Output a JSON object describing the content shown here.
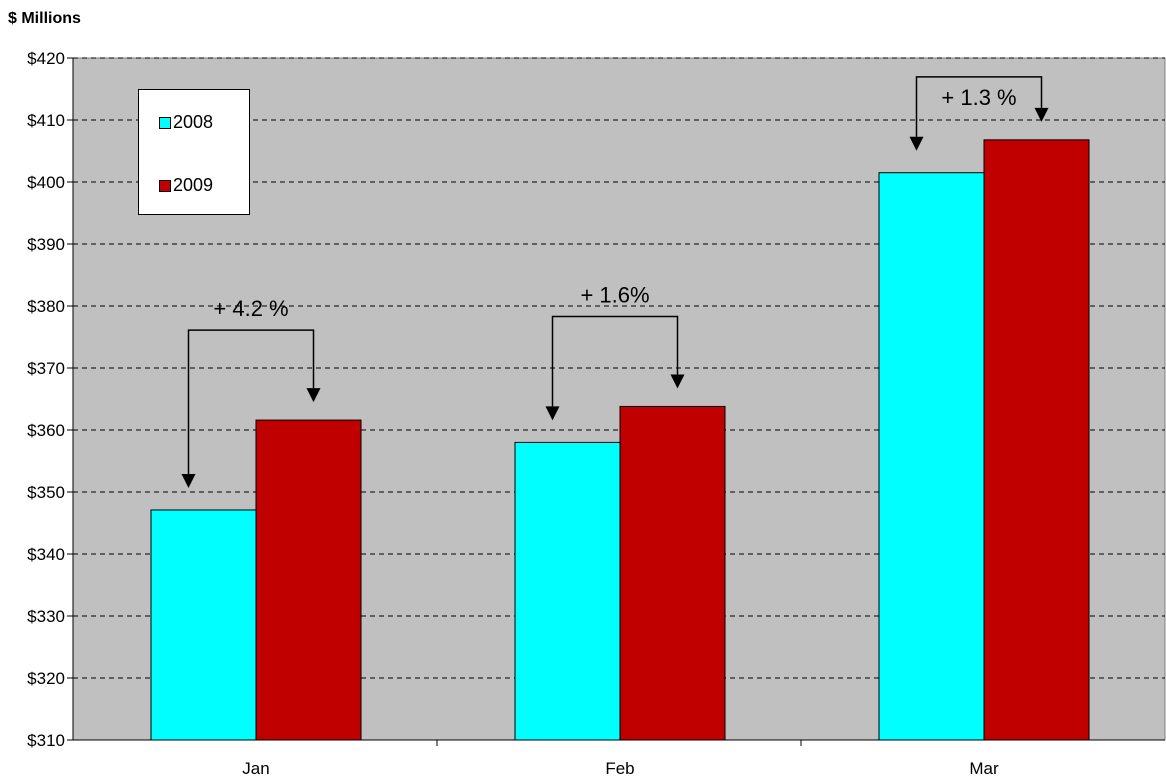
{
  "chart_data": {
    "type": "bar",
    "ylabel": "$ Millions",
    "categories": [
      "Jan",
      "Feb",
      "Mar"
    ],
    "series": [
      {
        "name": "2008",
        "color": "#00ffff",
        "values": [
          347.1,
          358.0,
          401.5
        ]
      },
      {
        "name": "2009",
        "color": "#c00000",
        "values": [
          361.6,
          363.8,
          406.8
        ]
      }
    ],
    "ylim": [
      310,
      420
    ],
    "yticks": [
      310,
      320,
      330,
      340,
      350,
      360,
      370,
      380,
      390,
      400,
      410,
      420
    ],
    "ytick_labels": [
      "$310",
      "$320",
      "$330",
      "$340",
      "$350",
      "$360",
      "$370",
      "$380",
      "$390",
      "$400",
      "$410",
      "$420"
    ],
    "grid": true,
    "legend_position": "top-left",
    "annotations": [
      "+ 4.2 %",
      "+ 1.6%",
      "+ 1.3 %"
    ]
  }
}
